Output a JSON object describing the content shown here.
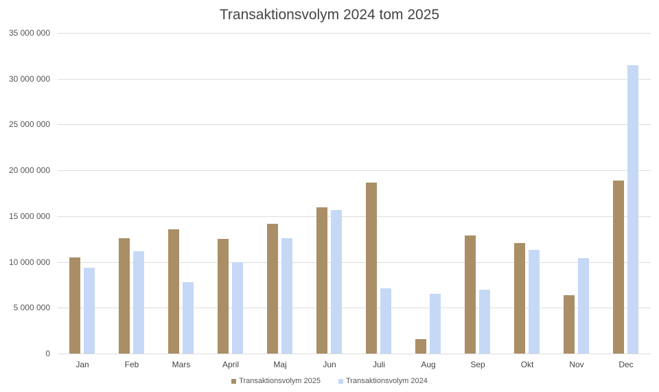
{
  "chart_data": {
    "type": "bar",
    "title": "Transaktionsvolym 2024 tom 2025",
    "xlabel": "",
    "ylabel": "",
    "ylim": [
      0,
      35000000
    ],
    "yticks": [
      0,
      5000000,
      10000000,
      15000000,
      20000000,
      25000000,
      30000000,
      35000000
    ],
    "ytick_labels": [
      "0",
      "5 000 000",
      "10 000 000",
      "15 000 000",
      "20 000 000",
      "25 000 000",
      "30 000 000",
      "35 000 000"
    ],
    "grid": true,
    "legend_position": "bottom",
    "categories": [
      "Jan",
      "Feb",
      "Mars",
      "April",
      "Maj",
      "Jun",
      "Juli",
      "Aug",
      "Sep",
      "Okt",
      "Nov",
      "Dec"
    ],
    "series": [
      {
        "name": "Transaktionsvolym 2025",
        "color": "#aa8e66",
        "values": [
          10500000,
          12600000,
          13600000,
          12500000,
          14200000,
          16000000,
          18700000,
          1600000,
          12900000,
          12100000,
          6400000,
          18900000
        ]
      },
      {
        "name": "Transaktionsvolym 2024",
        "color": "#c5d8f5",
        "values": [
          9400000,
          11200000,
          7800000,
          10000000,
          12600000,
          15700000,
          7100000,
          6500000,
          7000000,
          11300000,
          10400000,
          31500000
        ]
      }
    ]
  }
}
